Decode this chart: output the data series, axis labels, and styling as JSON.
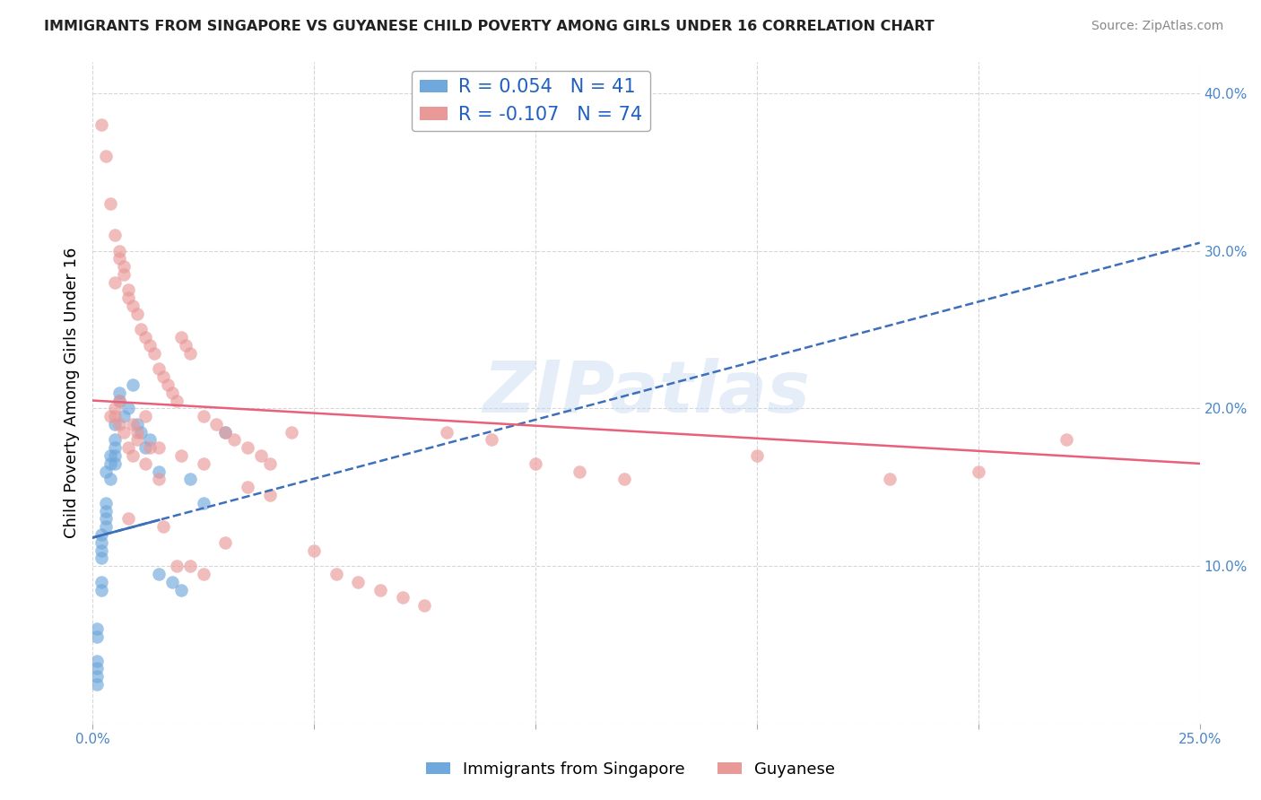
{
  "title": "IMMIGRANTS FROM SINGAPORE VS GUYANESE CHILD POVERTY AMONG GIRLS UNDER 16 CORRELATION CHART",
  "source": "Source: ZipAtlas.com",
  "ylabel": "Child Poverty Among Girls Under 16",
  "xlim": [
    0.0,
    0.25
  ],
  "ylim": [
    0.0,
    0.42
  ],
  "xticks": [
    0.0,
    0.05,
    0.1,
    0.15,
    0.2,
    0.25
  ],
  "yticks": [
    0.0,
    0.1,
    0.2,
    0.3,
    0.4
  ],
  "color_singapore": "#6fa8dc",
  "color_guyanese": "#ea9999",
  "color_singapore_line": "#3d6fba",
  "color_guyanese_line": "#e8607a",
  "watermark_text": "ZIPatlas",
  "sg_line_x0": 0.0,
  "sg_line_y0": 0.118,
  "sg_line_x1": 0.25,
  "sg_line_y1": 0.305,
  "gu_line_x0": 0.0,
  "gu_line_y0": 0.205,
  "gu_line_x1": 0.25,
  "gu_line_y1": 0.165,
  "singapore_x": [
    0.001,
    0.001,
    0.001,
    0.001,
    0.001,
    0.001,
    0.002,
    0.002,
    0.002,
    0.002,
    0.002,
    0.002,
    0.003,
    0.003,
    0.003,
    0.003,
    0.003,
    0.004,
    0.004,
    0.004,
    0.005,
    0.005,
    0.005,
    0.005,
    0.005,
    0.006,
    0.006,
    0.007,
    0.008,
    0.009,
    0.01,
    0.011,
    0.012,
    0.013,
    0.015,
    0.015,
    0.018,
    0.02,
    0.022,
    0.025,
    0.03
  ],
  "singapore_y": [
    0.04,
    0.035,
    0.03,
    0.025,
    0.06,
    0.055,
    0.12,
    0.115,
    0.11,
    0.105,
    0.09,
    0.085,
    0.14,
    0.135,
    0.13,
    0.125,
    0.16,
    0.155,
    0.17,
    0.165,
    0.18,
    0.175,
    0.17,
    0.165,
    0.19,
    0.21,
    0.205,
    0.195,
    0.2,
    0.215,
    0.19,
    0.185,
    0.175,
    0.18,
    0.16,
    0.095,
    0.09,
    0.085,
    0.155,
    0.14,
    0.185
  ],
  "guyanese_x": [
    0.002,
    0.003,
    0.004,
    0.005,
    0.006,
    0.007,
    0.008,
    0.009,
    0.01,
    0.011,
    0.012,
    0.013,
    0.014,
    0.015,
    0.016,
    0.017,
    0.018,
    0.019,
    0.02,
    0.021,
    0.022,
    0.025,
    0.028,
    0.03,
    0.032,
    0.035,
    0.038,
    0.04,
    0.045,
    0.05,
    0.055,
    0.06,
    0.065,
    0.07,
    0.075,
    0.08,
    0.09,
    0.1,
    0.11,
    0.12,
    0.005,
    0.006,
    0.007,
    0.008,
    0.009,
    0.01,
    0.012,
    0.015,
    0.02,
    0.025,
    0.004,
    0.005,
    0.006,
    0.007,
    0.008,
    0.009,
    0.012,
    0.015,
    0.15,
    0.18,
    0.2,
    0.22,
    0.005,
    0.006,
    0.008,
    0.01,
    0.013,
    0.016,
    0.019,
    0.022,
    0.025,
    0.03,
    0.035,
    0.04
  ],
  "guyanese_y": [
    0.38,
    0.36,
    0.33,
    0.31,
    0.3,
    0.285,
    0.275,
    0.265,
    0.26,
    0.25,
    0.245,
    0.24,
    0.235,
    0.225,
    0.22,
    0.215,
    0.21,
    0.205,
    0.245,
    0.24,
    0.235,
    0.195,
    0.19,
    0.185,
    0.18,
    0.175,
    0.17,
    0.165,
    0.185,
    0.11,
    0.095,
    0.09,
    0.085,
    0.08,
    0.075,
    0.185,
    0.18,
    0.165,
    0.16,
    0.155,
    0.28,
    0.295,
    0.29,
    0.27,
    0.19,
    0.185,
    0.195,
    0.175,
    0.17,
    0.165,
    0.195,
    0.195,
    0.19,
    0.185,
    0.175,
    0.17,
    0.165,
    0.155,
    0.17,
    0.155,
    0.16,
    0.18,
    0.2,
    0.205,
    0.13,
    0.18,
    0.175,
    0.125,
    0.1,
    0.1,
    0.095,
    0.115,
    0.15,
    0.145
  ]
}
